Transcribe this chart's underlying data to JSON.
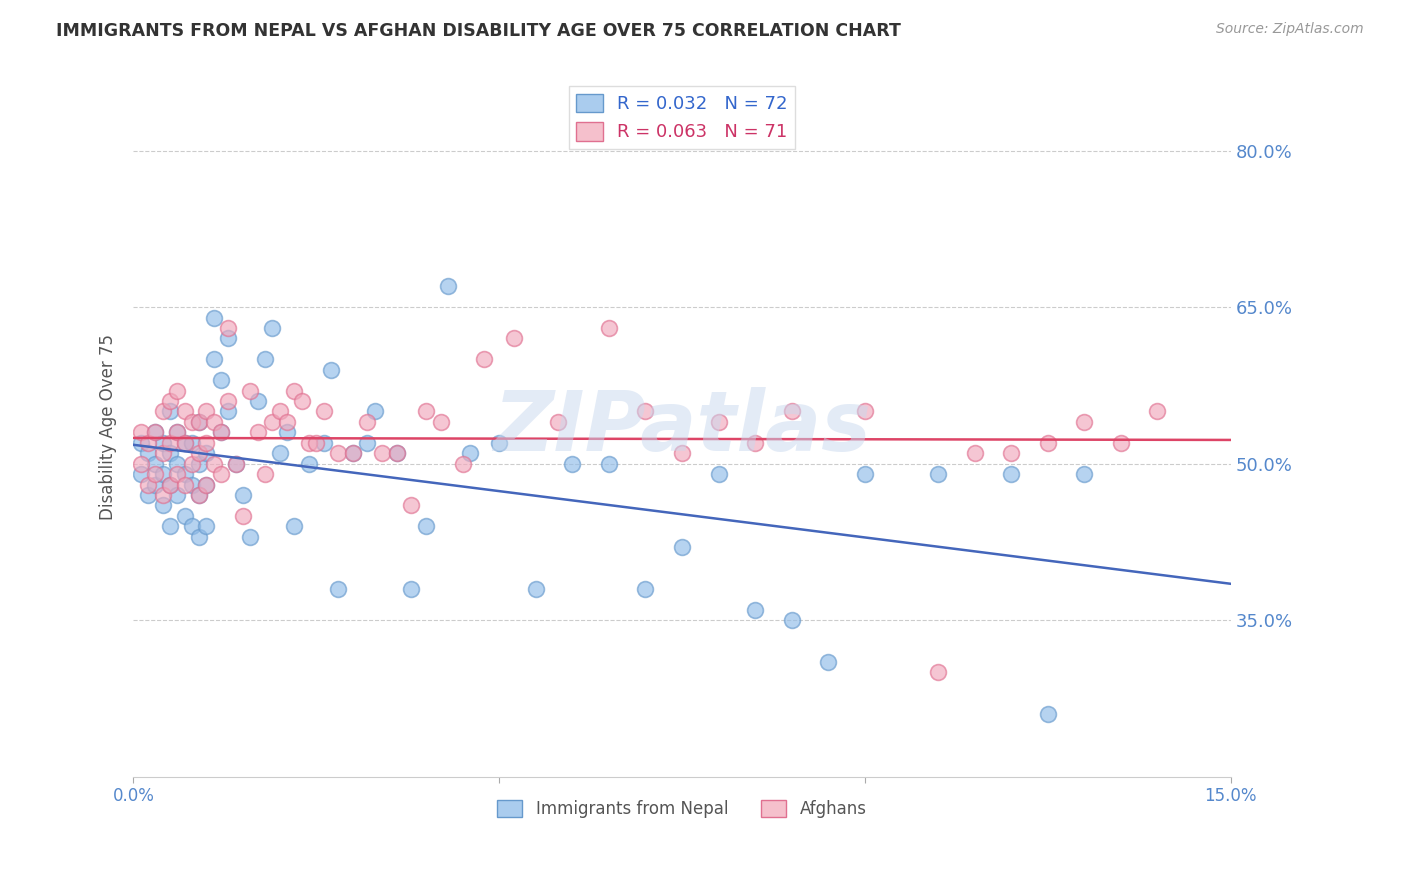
{
  "title": "IMMIGRANTS FROM NEPAL VS AFGHAN DISABILITY AGE OVER 75 CORRELATION CHART",
  "source": "Source: ZipAtlas.com",
  "ylabel": "Disability Age Over 75",
  "xlim": [
    0.0,
    0.15
  ],
  "ylim": [
    0.2,
    0.87
  ],
  "yticks_right": [
    0.8,
    0.65,
    0.5,
    0.35
  ],
  "ytick_labels_right": [
    "80.0%",
    "65.0%",
    "50.0%",
    "35.0%"
  ],
  "nepal_color": "#90bce8",
  "afghan_color": "#f0a8bc",
  "nepal_edge_color": "#6699cc",
  "afghan_edge_color": "#e07090",
  "nepal_line_color": "#4466bb",
  "afghan_line_color": "#dd4466",
  "background_color": "#ffffff",
  "grid_color": "#cccccc",
  "right_axis_color": "#5588cc",
  "watermark": "ZIPatlas",
  "watermark_color": "#c8d8ee",
  "nepal_x": [
    0.001,
    0.001,
    0.002,
    0.002,
    0.003,
    0.003,
    0.003,
    0.004,
    0.004,
    0.004,
    0.005,
    0.005,
    0.005,
    0.005,
    0.006,
    0.006,
    0.006,
    0.007,
    0.007,
    0.007,
    0.008,
    0.008,
    0.008,
    0.009,
    0.009,
    0.009,
    0.009,
    0.01,
    0.01,
    0.01,
    0.011,
    0.011,
    0.012,
    0.012,
    0.013,
    0.013,
    0.014,
    0.015,
    0.016,
    0.017,
    0.018,
    0.019,
    0.02,
    0.021,
    0.022,
    0.024,
    0.026,
    0.027,
    0.028,
    0.03,
    0.032,
    0.033,
    0.036,
    0.038,
    0.04,
    0.043,
    0.046,
    0.05,
    0.055,
    0.06,
    0.065,
    0.07,
    0.075,
    0.08,
    0.085,
    0.09,
    0.095,
    0.1,
    0.11,
    0.12,
    0.125,
    0.13
  ],
  "nepal_y": [
    0.49,
    0.52,
    0.47,
    0.51,
    0.48,
    0.5,
    0.53,
    0.46,
    0.49,
    0.52,
    0.44,
    0.48,
    0.51,
    0.55,
    0.47,
    0.5,
    0.53,
    0.45,
    0.49,
    0.52,
    0.44,
    0.48,
    0.52,
    0.43,
    0.47,
    0.5,
    0.54,
    0.44,
    0.48,
    0.51,
    0.6,
    0.64,
    0.58,
    0.53,
    0.55,
    0.62,
    0.5,
    0.47,
    0.43,
    0.56,
    0.6,
    0.63,
    0.51,
    0.53,
    0.44,
    0.5,
    0.52,
    0.59,
    0.38,
    0.51,
    0.52,
    0.55,
    0.51,
    0.38,
    0.44,
    0.67,
    0.51,
    0.52,
    0.38,
    0.5,
    0.5,
    0.38,
    0.42,
    0.49,
    0.36,
    0.35,
    0.31,
    0.49,
    0.49,
    0.49,
    0.26,
    0.49
  ],
  "afghan_x": [
    0.001,
    0.001,
    0.002,
    0.002,
    0.003,
    0.003,
    0.004,
    0.004,
    0.004,
    0.005,
    0.005,
    0.005,
    0.006,
    0.006,
    0.006,
    0.007,
    0.007,
    0.007,
    0.008,
    0.008,
    0.009,
    0.009,
    0.009,
    0.01,
    0.01,
    0.01,
    0.011,
    0.011,
    0.012,
    0.012,
    0.013,
    0.013,
    0.014,
    0.015,
    0.016,
    0.017,
    0.018,
    0.019,
    0.02,
    0.021,
    0.022,
    0.023,
    0.024,
    0.025,
    0.026,
    0.028,
    0.03,
    0.032,
    0.034,
    0.036,
    0.038,
    0.04,
    0.042,
    0.045,
    0.048,
    0.052,
    0.058,
    0.065,
    0.07,
    0.075,
    0.08,
    0.085,
    0.09,
    0.1,
    0.115,
    0.12,
    0.125,
    0.13,
    0.135,
    0.14,
    0.11
  ],
  "afghan_y": [
    0.5,
    0.53,
    0.48,
    0.52,
    0.49,
    0.53,
    0.47,
    0.51,
    0.55,
    0.48,
    0.52,
    0.56,
    0.49,
    0.53,
    0.57,
    0.48,
    0.52,
    0.55,
    0.5,
    0.54,
    0.47,
    0.51,
    0.54,
    0.48,
    0.52,
    0.55,
    0.5,
    0.54,
    0.49,
    0.53,
    0.63,
    0.56,
    0.5,
    0.45,
    0.57,
    0.53,
    0.49,
    0.54,
    0.55,
    0.54,
    0.57,
    0.56,
    0.52,
    0.52,
    0.55,
    0.51,
    0.51,
    0.54,
    0.51,
    0.51,
    0.46,
    0.55,
    0.54,
    0.5,
    0.6,
    0.62,
    0.54,
    0.63,
    0.55,
    0.51,
    0.54,
    0.52,
    0.55,
    0.55,
    0.51,
    0.51,
    0.52,
    0.54,
    0.52,
    0.55,
    0.3
  ]
}
